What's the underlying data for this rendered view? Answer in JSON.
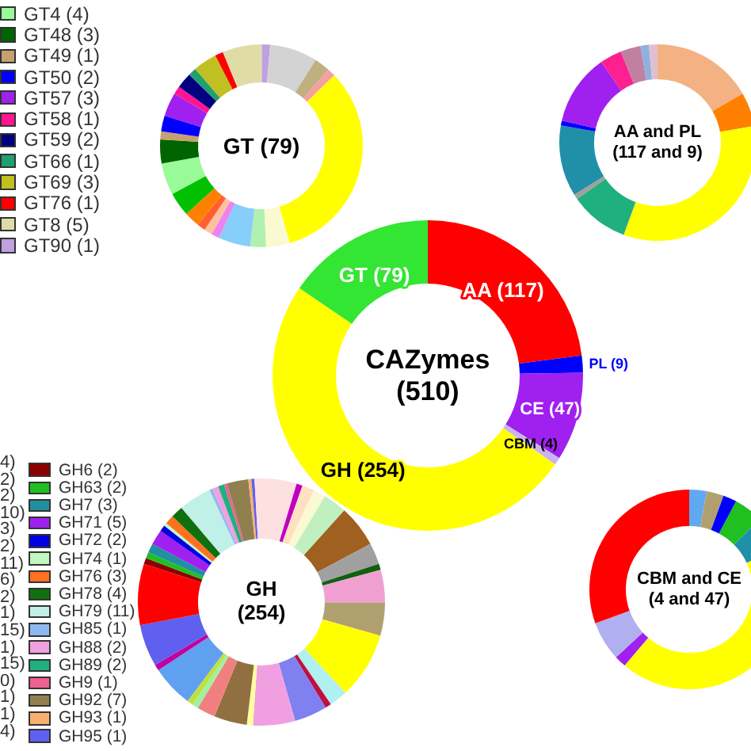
{
  "chart_data": [
    {
      "type": "donut",
      "title": "GT (79)",
      "legend": "left",
      "categories": [
        "GT4 (4)",
        "GT48 (3)",
        "GT49 (1)",
        "GT50 (2)",
        "GT57 (3)",
        "GT58 (1)",
        "GT59 (2)",
        "GT66 (1)",
        "GT69 (3)",
        "GT76 (1)",
        "GT8 (5)",
        "GT90 (1)",
        null,
        null,
        null,
        null,
        null,
        null,
        null,
        null,
        null,
        null,
        null,
        null
      ],
      "values": [
        5.1,
        3.8,
        1.3,
        2.5,
        3.8,
        1.3,
        2.5,
        1.3,
        3.8,
        1.3,
        6.3,
        1.3,
        7.6,
        2.5,
        1.3,
        32.7,
        3.8,
        2.5,
        5.1,
        1.3,
        1.3,
        1.3,
        2.5,
        3.8
      ],
      "colors": [
        "#98fb98",
        "#006400",
        "#c8a070",
        "#0000ff",
        "#a020f0",
        "#ff1493",
        "#000080",
        "#20a070",
        "#c0c020",
        "#ff0000",
        "#e0dca8",
        "#c0a0e0",
        "#d3d3d3",
        "#c0b080",
        "#f4a0a0",
        "#ffff00",
        "#fafad2",
        "#b0f0b0",
        "#87cefa",
        "#ee82ee",
        "#ffc0a0",
        "#ff6030",
        "#ff8000",
        "#00c000"
      ]
    },
    {
      "type": "donut",
      "title": "AA and PL (117 and 9)",
      "categories": [
        null,
        null,
        null,
        null,
        null,
        null,
        null,
        null,
        null,
        null,
        null,
        null
      ],
      "values": [
        16.7,
        5.6,
        33.3,
        9.7,
        0.8,
        11.7,
        0.8,
        11.7,
        3.6,
        3.3,
        1.4,
        1.4
      ],
      "colors": [
        "#f4b183",
        "#ff8000",
        "#ffff00",
        "#20b080",
        "#a0a0a0",
        "#2090a8",
        "#0000ff",
        "#a020f0",
        "#ff2090",
        "#c080a0",
        "#90b0e0",
        "#e0c0d0"
      ]
    },
    {
      "type": "donut",
      "title": "CAZymes (510)",
      "categories": [
        "AA",
        "PL",
        "CE",
        "CBM",
        "GH",
        "GT"
      ],
      "values": [
        117,
        9,
        47,
        4,
        254,
        79
      ],
      "value_labels": [
        "(117)",
        "(9)",
        "(47)",
        "(4)",
        "(254)",
        "(79)"
      ],
      "colors": [
        "#ff0000",
        "#0000ff",
        "#a020f0",
        "#c8b4f0",
        "#ffff00",
        "#33e633"
      ]
    },
    {
      "type": "donut",
      "title": "GH (254)",
      "legend": "left",
      "categories": [
        "GH6 (2)",
        "GH63 (2)",
        "GH7 (3)",
        "GH71 (5)",
        "GH72 (2)",
        "GH74 (1)",
        "GH76 (3)",
        "GH78 (4)",
        "GH79 (11)",
        "GH85 (1)",
        "GH88 (2)",
        "GH89 (2)",
        "GH9 (1)",
        "GH92 (7)",
        "GH93 (1)",
        "GH95 (1)",
        null,
        null,
        null,
        null,
        null,
        null,
        null,
        null,
        null,
        null,
        null,
        null,
        null,
        null,
        null,
        null,
        null,
        null,
        null,
        null,
        null,
        null,
        null,
        null
      ],
      "values": [
        0.8,
        0.8,
        1.2,
        2.0,
        0.8,
        0.4,
        1.2,
        1.6,
        4.3,
        0.4,
        0.8,
        0.8,
        0.4,
        2.8,
        0.4,
        0.4,
        5.5,
        0.8,
        1.6,
        1.6,
        3.1,
        5.5,
        2.8,
        0.8,
        4.3,
        4.3,
        8.7,
        2.4,
        0.8,
        4.3,
        5.5,
        0.8,
        4.3,
        2.4,
        0.8,
        0.8,
        5.5,
        0.8,
        5.5,
        8.0
      ],
      "colors": [
        "#8b0000",
        "#20c020",
        "#2090a0",
        "#a020f0",
        "#0000e0",
        "#c0f8c0",
        "#ff7020",
        "#107010",
        "#c0f0e8",
        "#90b8f0",
        "#f0a0e0",
        "#20b080",
        "#f06090",
        "#908050",
        "#f8b070",
        "#6060f0",
        "#fde0e0",
        "#c000c0",
        "#ffe0c0",
        "#fafad2",
        "#c0f0c0",
        "#a06020",
        "#a0a0a0",
        "#106010",
        "#f0a0d0",
        "#b0a070",
        "#ffff00",
        "#b0f0f0",
        "#c01040",
        "#8080f0",
        "#f0a0e0",
        "#ffffa0",
        "#907040",
        "#f08080",
        "#a0f0a0",
        "#c0e040",
        "#60a0f0",
        "#c000a0",
        "#6060f0",
        "#ff0000"
      ],
      "annotations": [
        "4)",
        "2)",
        "2)",
        "10)",
        "3)",
        "2)",
        "11)",
        "6)",
        "2)",
        "1)",
        "15)",
        "1)",
        "15)",
        "0)",
        "1)",
        "1)",
        "4)"
      ]
    },
    {
      "type": "donut",
      "title": "CBM and CE (4 and 47)",
      "categories": [
        null,
        null,
        null,
        null,
        null,
        null,
        null,
        null,
        null
      ],
      "values": [
        2.8,
        2.8,
        2.2,
        4.7,
        5.6,
        43.1,
        1.9,
        6.4,
        30.5
      ],
      "colors": [
        "#60a8f0",
        "#b0a070",
        "#0000ff",
        "#20c020",
        "#2090a8",
        "#ffff00",
        "#a020f0",
        "#b0b0f0",
        "#ff0000"
      ]
    }
  ]
}
